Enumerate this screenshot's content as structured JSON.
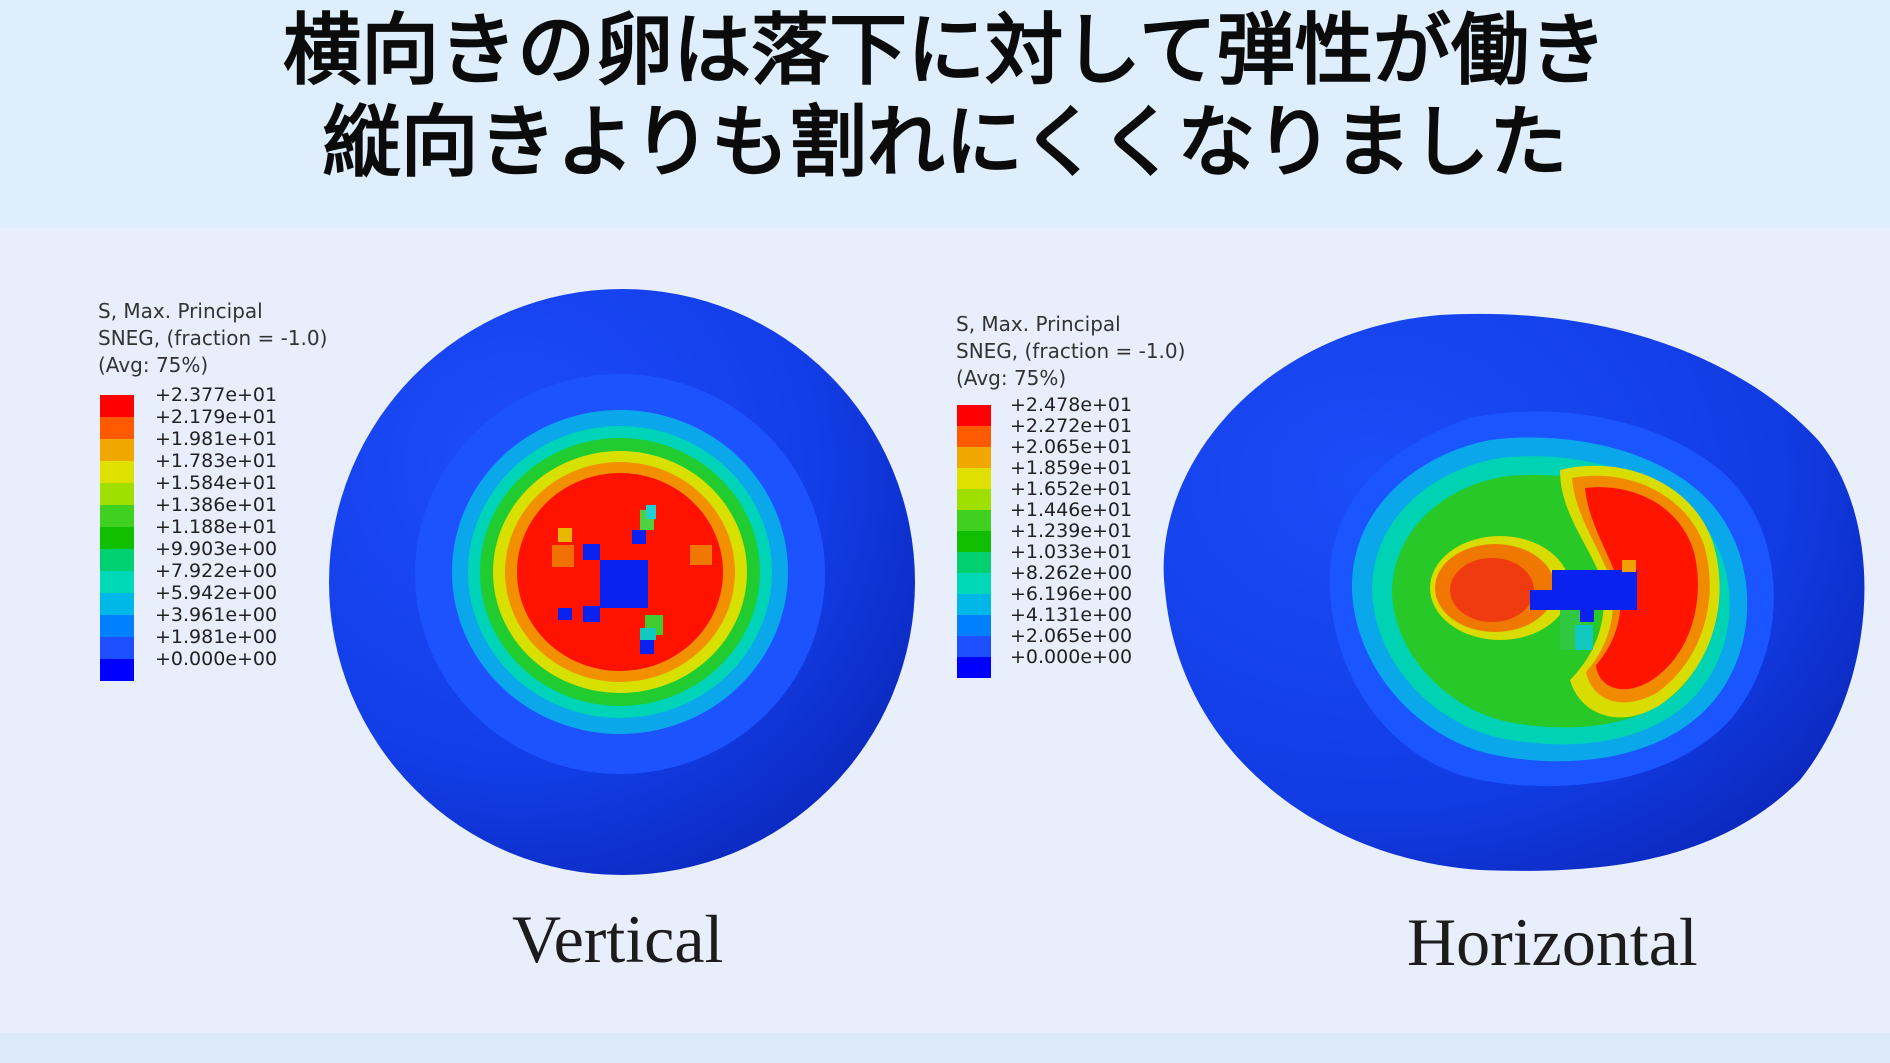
{
  "title": {
    "line1": "横向きの卵は落下に対して弾性が働き",
    "line2": "縦向きよりも割れにくくなりました"
  },
  "panels": [
    {
      "id": "vertical",
      "caption": "Vertical",
      "legend": {
        "title": "S, Max. Principal\nSNEG, (fraction = -1.0)\n(Avg: 75%)",
        "ticks": [
          "+2.377e+01",
          "+2.179e+01",
          "+1.981e+01",
          "+1.783e+01",
          "+1.584e+01",
          "+1.386e+01",
          "+1.188e+01",
          "+9.903e+00",
          "+7.922e+00",
          "+5.942e+00",
          "+3.961e+00",
          "+1.981e+00",
          "+0.000e+00"
        ]
      }
    },
    {
      "id": "horizontal",
      "caption": "Horizontal",
      "legend": {
        "title": "S, Max. Principal\nSNEG, (fraction = -1.0)\n(Avg: 75%)",
        "ticks": [
          "+2.478e+01",
          "+2.272e+01",
          "+2.065e+01",
          "+1.859e+01",
          "+1.652e+01",
          "+1.446e+01",
          "+1.239e+01",
          "+1.033e+01",
          "+8.262e+00",
          "+6.196e+00",
          "+4.131e+00",
          "+2.065e+00",
          "+0.000e+00"
        ]
      }
    }
  ],
  "colors": {
    "scale": [
      "#ff0000",
      "#ff5a00",
      "#f0a800",
      "#e0e000",
      "#a0e000",
      "#40d020",
      "#10c000",
      "#00d070",
      "#00d8b8",
      "#00b8e8",
      "#0080ff",
      "#1e50ff",
      "#0000ff"
    ],
    "deep_blue": "#0a1eb0"
  }
}
